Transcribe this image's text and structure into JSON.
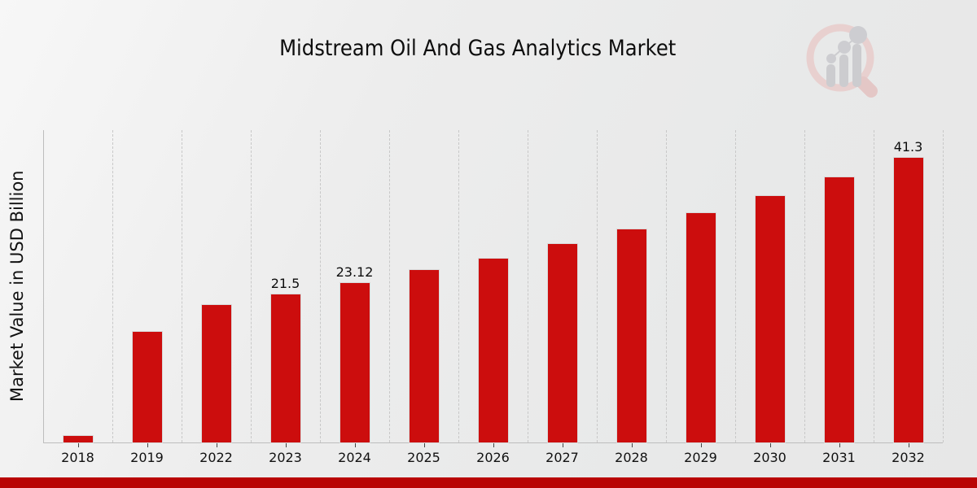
{
  "header": {
    "title": "Midstream Oil And Gas Analytics Market"
  },
  "watermark": {
    "name": "market-research-magnifier-logo",
    "ring_color": "#e8cecd",
    "handle_color": "#e4c4c3",
    "bars_color": "#c9c9cd"
  },
  "footer": {
    "bar_color": "#b90404"
  },
  "chart_data": {
    "type": "bar",
    "title": "Midstream Oil And Gas Analytics Market",
    "xlabel": "",
    "ylabel": "Market Value in USD Billion",
    "categories": [
      "2018",
      "2019",
      "2022",
      "2023",
      "2024",
      "2025",
      "2026",
      "2027",
      "2028",
      "2029",
      "2030",
      "2031",
      "2032"
    ],
    "values": [
      1.0,
      16.1,
      20.0,
      21.5,
      23.12,
      25.0,
      26.7,
      28.8,
      31.0,
      33.3,
      35.8,
      38.5,
      41.3
    ],
    "bar_labels": [
      "",
      "",
      "",
      "21.5",
      "23.12",
      "",
      "",
      "",
      "",
      "",
      "",
      "",
      "41.3"
    ],
    "bar_color": "#cc0d0d",
    "ylim": [
      0,
      45.35
    ],
    "grid": "vertical-dashed",
    "legend": "none",
    "yticks": "none"
  }
}
